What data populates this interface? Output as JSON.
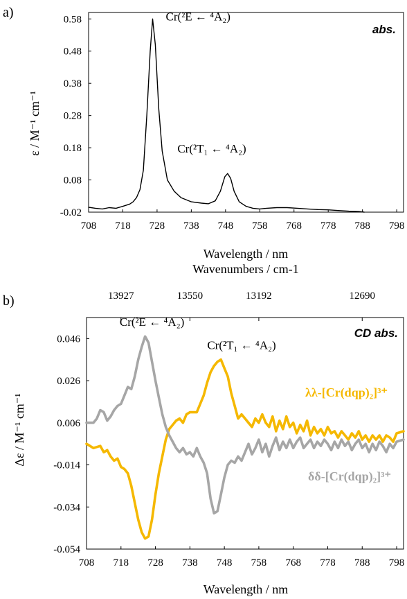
{
  "chart_data": [
    {
      "panel_label": "a)",
      "type": "line",
      "corner_label": "abs.",
      "xlabel": "Wavelength / nm",
      "ylabel": "ε / M⁻¹ cm⁻¹",
      "xlim": [
        708,
        800
      ],
      "ylim": [
        -0.02,
        0.6
      ],
      "xticks": [
        708,
        718,
        728,
        738,
        748,
        758,
        768,
        778,
        788,
        798
      ],
      "yticks": [
        0.58,
        0.48,
        0.38,
        0.28,
        0.18,
        0.08,
        -0.02
      ],
      "ytick_labels": [
        "0.58",
        "0.48",
        "0.38",
        "0.28",
        "0.18",
        "0.08",
        "-0.02"
      ],
      "series": [
        {
          "color": "#000000",
          "points": [
            [
              708,
              -0.005
            ],
            [
              710,
              -0.008
            ],
            [
              712,
              -0.01
            ],
            [
              714,
              -0.006
            ],
            [
              716,
              -0.008
            ],
            [
              718,
              -0.002
            ],
            [
              720,
              0.005
            ],
            [
              721,
              0.012
            ],
            [
              722,
              0.025
            ],
            [
              723,
              0.05
            ],
            [
              724,
              0.11
            ],
            [
              725,
              0.28
            ],
            [
              726,
              0.48
            ],
            [
              726.7,
              0.58
            ],
            [
              727.5,
              0.5
            ],
            [
              728.5,
              0.3
            ],
            [
              729.5,
              0.17
            ],
            [
              731,
              0.08
            ],
            [
              733,
              0.045
            ],
            [
              735,
              0.025
            ],
            [
              738,
              0.012
            ],
            [
              741,
              0.008
            ],
            [
              743,
              0.006
            ],
            [
              745,
              0.015
            ],
            [
              746.5,
              0.045
            ],
            [
              747.8,
              0.09
            ],
            [
              748.6,
              0.1
            ],
            [
              749.5,
              0.085
            ],
            [
              750.5,
              0.045
            ],
            [
              752,
              0.012
            ],
            [
              754,
              -0.002
            ],
            [
              756,
              -0.008
            ],
            [
              758,
              -0.01
            ],
            [
              760,
              -0.008
            ],
            [
              763,
              -0.006
            ],
            [
              766,
              -0.006
            ],
            [
              769,
              -0.008
            ],
            [
              772,
              -0.01
            ],
            [
              775,
              -0.012
            ],
            [
              778,
              -0.013
            ],
            [
              781,
              -0.015
            ],
            [
              784,
              -0.017
            ],
            [
              787,
              -0.018
            ],
            [
              788.5,
              -0.02
            ]
          ]
        }
      ],
      "annotations": [
        {
          "text": "Cr(²E ← ⁴A₂)",
          "x": 740,
          "y": 0.575
        },
        {
          "text": "Cr(²T₁ ← ⁴A₂)",
          "x": 744,
          "y": 0.165
        }
      ]
    },
    {
      "panel_label": "b)",
      "type": "line",
      "corner_label": "CD abs.",
      "top_axis_label": "Wavenumbers / cm-1",
      "top_ticks": [
        {
          "label": "13927",
          "at_wavelength": 718
        },
        {
          "label": "13550",
          "at_wavelength": 738
        },
        {
          "label": "13192",
          "at_wavelength": 758
        },
        {
          "label": "12690",
          "at_wavelength": 788
        }
      ],
      "xlabel": "Wavelength / nm",
      "ylabel": "Δε / M⁻¹ cm⁻¹",
      "xlim": [
        708,
        800
      ],
      "ylim": [
        -0.054,
        0.056
      ],
      "xticks": [
        708,
        718,
        728,
        738,
        748,
        758,
        768,
        778,
        788,
        798
      ],
      "yticks": [
        0.046,
        0.026,
        0.006,
        -0.014,
        -0.034,
        -0.054
      ],
      "ytick_labels": [
        "0.046",
        "0.026",
        "0.006",
        "-0.014",
        "-0.034",
        "-0.054"
      ],
      "series": [
        {
          "name": "λλ-[Cr(dqp)₂]³⁺",
          "color": "#F5B800",
          "points": [
            [
              708,
              -0.004
            ],
            [
              710,
              -0.006
            ],
            [
              712,
              -0.005
            ],
            [
              713,
              -0.008
            ],
            [
              714,
              -0.007
            ],
            [
              715,
              -0.01
            ],
            [
              716,
              -0.012
            ],
            [
              717,
              -0.011
            ],
            [
              718,
              -0.015
            ],
            [
              719,
              -0.016
            ],
            [
              720,
              -0.018
            ],
            [
              721,
              -0.024
            ],
            [
              722,
              -0.032
            ],
            [
              723,
              -0.04
            ],
            [
              724,
              -0.046
            ],
            [
              725,
              -0.049
            ],
            [
              726,
              -0.048
            ],
            [
              727,
              -0.04
            ],
            [
              728,
              -0.028
            ],
            [
              729,
              -0.018
            ],
            [
              730,
              -0.01
            ],
            [
              731,
              -0.002
            ],
            [
              732,
              0.003
            ],
            [
              733,
              0.005
            ],
            [
              734,
              0.007
            ],
            [
              735,
              0.008
            ],
            [
              736,
              0.006
            ],
            [
              737,
              0.01
            ],
            [
              738,
              0.011
            ],
            [
              740,
              0.011
            ],
            [
              741,
              0.015
            ],
            [
              742,
              0.019
            ],
            [
              743,
              0.025
            ],
            [
              744,
              0.03
            ],
            [
              745,
              0.033
            ],
            [
              746,
              0.035
            ],
            [
              747,
              0.036
            ],
            [
              748,
              0.032
            ],
            [
              749,
              0.028
            ],
            [
              750,
              0.02
            ],
            [
              751,
              0.014
            ],
            [
              752,
              0.008
            ],
            [
              753,
              0.01
            ],
            [
              754,
              0.008
            ],
            [
              755,
              0.006
            ],
            [
              756,
              0.004
            ],
            [
              757,
              0.008
            ],
            [
              758,
              0.006
            ],
            [
              759,
              0.01
            ],
            [
              760,
              0.006
            ],
            [
              761,
              0.004
            ],
            [
              762,
              0.009
            ],
            [
              763,
              0.002
            ],
            [
              764,
              0.007
            ],
            [
              765,
              0.003
            ],
            [
              766,
              0.009
            ],
            [
              767,
              0.004
            ],
            [
              768,
              0.006
            ],
            [
              769,
              0.001
            ],
            [
              770,
              0.005
            ],
            [
              771,
              0.002
            ],
            [
              772,
              0.007
            ],
            [
              773,
              0.0
            ],
            [
              774,
              0.004
            ],
            [
              775,
              0.001
            ],
            [
              776,
              0.003
            ],
            [
              777,
              0.0
            ],
            [
              778,
              0.004
            ],
            [
              779,
              0.001
            ],
            [
              780,
              0.002
            ],
            [
              781,
              -0.001
            ],
            [
              782,
              0.002
            ],
            [
              783,
              0.0
            ],
            [
              784,
              -0.002
            ],
            [
              785,
              0.001
            ],
            [
              786,
              -0.001
            ],
            [
              787,
              0.002
            ],
            [
              788,
              -0.002
            ],
            [
              789,
              0.0
            ],
            [
              790,
              -0.003
            ],
            [
              791,
              0.0
            ],
            [
              792,
              -0.002
            ],
            [
              793,
              0.0
            ],
            [
              794,
              -0.003
            ],
            [
              795,
              0.0
            ],
            [
              796,
              -0.001
            ],
            [
              797,
              -0.003
            ],
            [
              798,
              0.001
            ],
            [
              800,
              0.002
            ]
          ]
        },
        {
          "name": "δδ-[Cr(dqp)₂]³⁺",
          "color": "#A6A6A6",
          "points": [
            [
              708,
              0.006
            ],
            [
              710,
              0.006
            ],
            [
              711,
              0.008
            ],
            [
              712,
              0.012
            ],
            [
              713,
              0.011
            ],
            [
              714,
              0.007
            ],
            [
              715,
              0.009
            ],
            [
              716,
              0.012
            ],
            [
              717,
              0.014
            ],
            [
              718,
              0.015
            ],
            [
              719,
              0.019
            ],
            [
              720,
              0.023
            ],
            [
              721,
              0.022
            ],
            [
              722,
              0.028
            ],
            [
              723,
              0.036
            ],
            [
              724,
              0.042
            ],
            [
              725,
              0.047
            ],
            [
              726,
              0.044
            ],
            [
              727,
              0.035
            ],
            [
              728,
              0.026
            ],
            [
              729,
              0.018
            ],
            [
              730,
              0.01
            ],
            [
              731,
              0.004
            ],
            [
              732,
              0.0
            ],
            [
              733,
              -0.003
            ],
            [
              734,
              -0.006
            ],
            [
              735,
              -0.008
            ],
            [
              736,
              -0.006
            ],
            [
              737,
              -0.009
            ],
            [
              738,
              -0.008
            ],
            [
              739,
              -0.01
            ],
            [
              740,
              -0.006
            ],
            [
              741,
              -0.01
            ],
            [
              742,
              -0.013
            ],
            [
              743,
              -0.018
            ],
            [
              744,
              -0.03
            ],
            [
              745,
              -0.037
            ],
            [
              746,
              -0.036
            ],
            [
              747,
              -0.028
            ],
            [
              748,
              -0.02
            ],
            [
              749,
              -0.014
            ],
            [
              750,
              -0.012
            ],
            [
              751,
              -0.013
            ],
            [
              752,
              -0.01
            ],
            [
              753,
              -0.012
            ],
            [
              754,
              -0.008
            ],
            [
              755,
              -0.004
            ],
            [
              756,
              -0.009
            ],
            [
              757,
              -0.006
            ],
            [
              758,
              -0.002
            ],
            [
              759,
              -0.008
            ],
            [
              760,
              -0.004
            ],
            [
              761,
              -0.01
            ],
            [
              762,
              -0.005
            ],
            [
              763,
              -0.001
            ],
            [
              764,
              -0.007
            ],
            [
              765,
              -0.003
            ],
            [
              766,
              -0.006
            ],
            [
              767,
              -0.002
            ],
            [
              768,
              -0.006
            ],
            [
              769,
              -0.003
            ],
            [
              770,
              -0.001
            ],
            [
              771,
              -0.006
            ],
            [
              772,
              -0.004
            ],
            [
              773,
              -0.002
            ],
            [
              774,
              -0.006
            ],
            [
              775,
              -0.003
            ],
            [
              776,
              -0.005
            ],
            [
              777,
              -0.002
            ],
            [
              778,
              -0.004
            ],
            [
              779,
              -0.007
            ],
            [
              780,
              -0.003
            ],
            [
              781,
              -0.006
            ],
            [
              782,
              -0.002
            ],
            [
              783,
              -0.005
            ],
            [
              784,
              -0.003
            ],
            [
              785,
              -0.007
            ],
            [
              786,
              -0.004
            ],
            [
              787,
              -0.002
            ],
            [
              788,
              -0.006
            ],
            [
              789,
              -0.004
            ],
            [
              790,
              -0.008
            ],
            [
              791,
              -0.004
            ],
            [
              792,
              -0.007
            ],
            [
              793,
              -0.003
            ],
            [
              794,
              -0.005
            ],
            [
              795,
              -0.008
            ],
            [
              796,
              -0.004
            ],
            [
              797,
              -0.006
            ],
            [
              798,
              -0.003
            ],
            [
              800,
              -0.002
            ]
          ]
        }
      ],
      "annotations": [
        {
          "text": "Cr(²E ← ⁴A₂)",
          "x": 727,
          "y": 0.052
        },
        {
          "text": "Cr(²T₁ ← ⁴A₂)",
          "x": 753,
          "y": 0.041
        }
      ]
    }
  ]
}
